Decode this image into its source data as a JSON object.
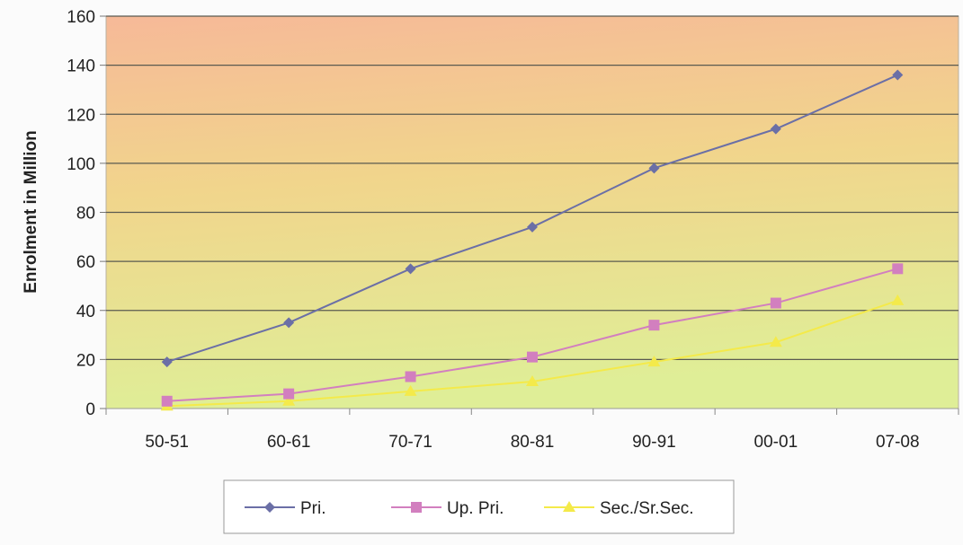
{
  "chart_data": {
    "type": "line",
    "categories": [
      "50-51",
      "60-61",
      "70-71",
      "80-81",
      "90-91",
      "00-01",
      "07-08"
    ],
    "series": [
      {
        "name": "Pri.",
        "values": [
          19,
          35,
          57,
          74,
          98,
          114,
          136
        ],
        "color": "#6b6fa6",
        "marker": "diamond"
      },
      {
        "name": "Up. Pri.",
        "values": [
          3,
          6,
          13,
          21,
          34,
          43,
          57
        ],
        "color": "#d27fbf",
        "marker": "square"
      },
      {
        "name": "Sec./Sr.Sec.",
        "values": [
          1,
          3,
          7,
          11,
          19,
          27,
          44
        ],
        "color": "#f4ea4a",
        "marker": "triangle"
      }
    ],
    "title": "",
    "xlabel": "",
    "ylabel": "Enrolment in Million",
    "ylim": [
      0,
      160
    ],
    "yticks": [
      0,
      20,
      40,
      60,
      80,
      100,
      120,
      140,
      160
    ],
    "grid": true,
    "legend_position": "bottom"
  }
}
